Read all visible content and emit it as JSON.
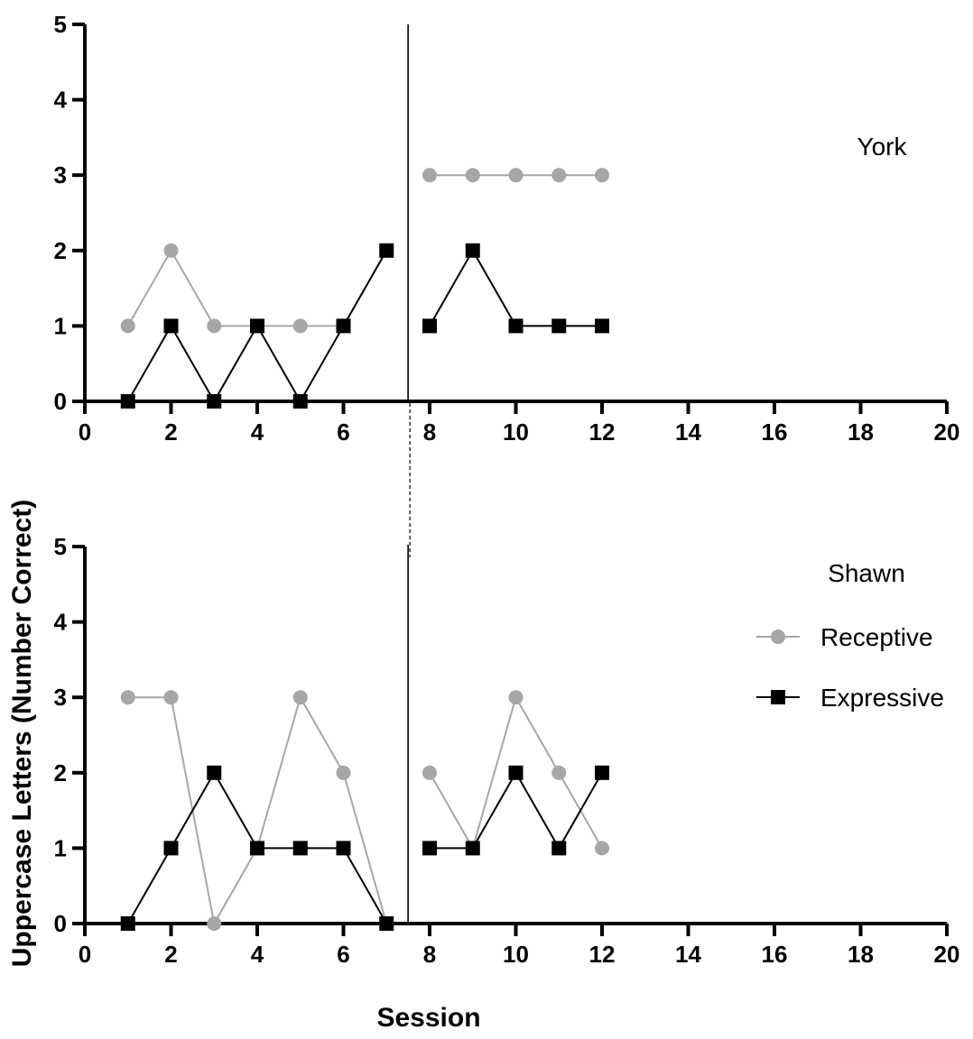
{
  "chart_data": {
    "type": "line",
    "xlabel": "Session",
    "ylabel": "Uppercase Letters (Number Correct)",
    "xlim": [
      0,
      20
    ],
    "ylim": [
      0,
      5
    ],
    "xticks": [
      "0",
      "2",
      "4",
      "6",
      "8",
      "10",
      "12",
      "14",
      "16",
      "18",
      "20"
    ],
    "yticks": [
      "0",
      "1",
      "2",
      "3",
      "4",
      "5"
    ],
    "phase_change_after_session": 7.5,
    "colors": {
      "receptive": "#a6a6a6",
      "expressive": "#000000"
    },
    "legend": {
      "placement": "right, lower panel",
      "entries": [
        {
          "label": "Receptive",
          "marker": "circle",
          "color": "#a6a6a6"
        },
        {
          "label": "Expressive",
          "marker": "square",
          "color": "#000000"
        }
      ]
    },
    "panels": [
      {
        "label": "York",
        "series": [
          {
            "name": "Receptive",
            "marker": "circle",
            "segments": [
              {
                "x": [
                  1,
                  2,
                  3,
                  4,
                  5,
                  6,
                  7
                ],
                "y": [
                  1,
                  2,
                  1,
                  1,
                  1,
                  1,
                  2
                ]
              },
              {
                "x": [
                  8,
                  9,
                  10,
                  11,
                  12
                ],
                "y": [
                  3,
                  3,
                  3,
                  3,
                  3
                ]
              }
            ]
          },
          {
            "name": "Expressive",
            "marker": "square",
            "segments": [
              {
                "x": [
                  1,
                  2,
                  3,
                  4,
                  5,
                  6,
                  7
                ],
                "y": [
                  0,
                  1,
                  0,
                  1,
                  0,
                  1,
                  2
                ]
              },
              {
                "x": [
                  8,
                  9,
                  10,
                  11,
                  12
                ],
                "y": [
                  1,
                  2,
                  1,
                  1,
                  1
                ]
              }
            ]
          }
        ]
      },
      {
        "label": "Shawn",
        "series": [
          {
            "name": "Receptive",
            "marker": "circle",
            "segments": [
              {
                "x": [
                  1,
                  2,
                  3,
                  4,
                  5,
                  6,
                  7
                ],
                "y": [
                  3,
                  3,
                  0,
                  1,
                  3,
                  2,
                  0
                ]
              },
              {
                "x": [
                  8,
                  9,
                  10,
                  11,
                  12
                ],
                "y": [
                  2,
                  1,
                  3,
                  2,
                  1
                ]
              }
            ]
          },
          {
            "name": "Expressive",
            "marker": "square",
            "segments": [
              {
                "x": [
                  1,
                  2,
                  3,
                  4,
                  5,
                  6,
                  7
                ],
                "y": [
                  0,
                  1,
                  2,
                  1,
                  1,
                  1,
                  0
                ]
              },
              {
                "x": [
                  8,
                  9,
                  10,
                  11,
                  12
                ],
                "y": [
                  1,
                  1,
                  2,
                  1,
                  2
                ]
              }
            ]
          }
        ]
      }
    ]
  }
}
